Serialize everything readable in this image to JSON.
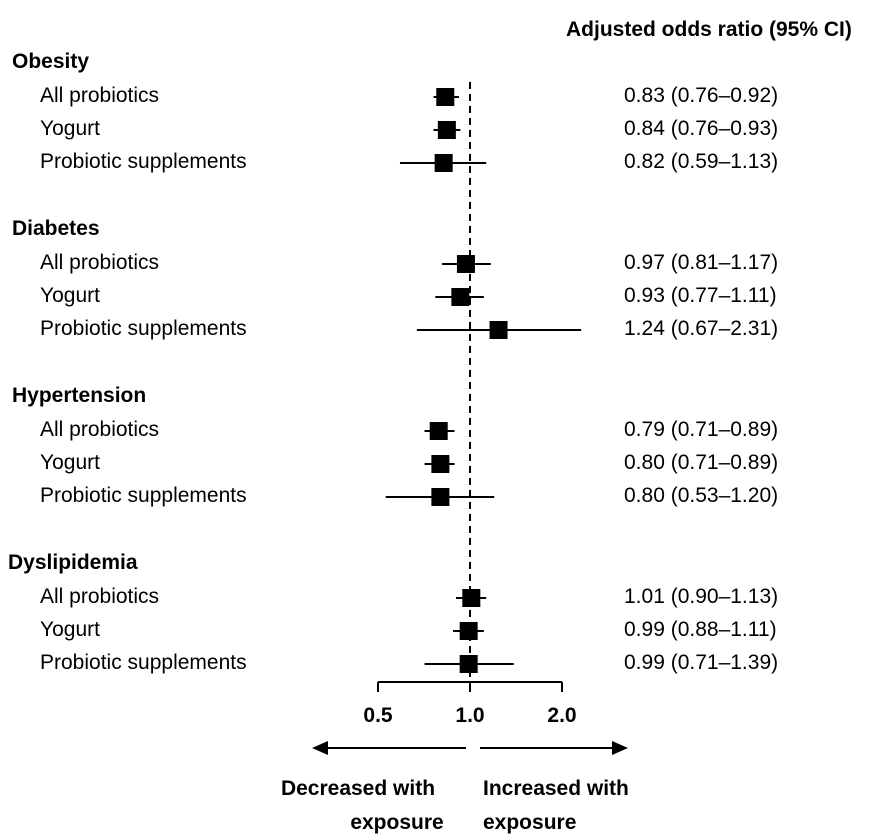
{
  "header": "Adjusted odds ratio (95% CI)",
  "chart_data": {
    "type": "forest",
    "xscale": "log",
    "reference_line": 1.0,
    "x_ticks": [
      {
        "value": 0.5,
        "label": "0.5"
      },
      {
        "value": 1.0,
        "label": "1.0"
      },
      {
        "value": 2.0,
        "label": "2.0"
      }
    ],
    "direction_labels": {
      "left_line1": "Decreased with",
      "left_line2": "exposure",
      "right_line1": "Increased with",
      "right_line2": "exposure"
    },
    "groups": [
      {
        "label": "Obesity",
        "rows": [
          {
            "label": "All probiotics",
            "or": 0.83,
            "lo": 0.76,
            "hi": 0.92,
            "text": "0.83 (0.76–0.92)"
          },
          {
            "label": "Yogurt",
            "or": 0.84,
            "lo": 0.76,
            "hi": 0.93,
            "text": "0.84 (0.76–0.93)"
          },
          {
            "label": "Probiotic supplements",
            "or": 0.82,
            "lo": 0.59,
            "hi": 1.13,
            "text": "0.82 (0.59–1.13)"
          }
        ]
      },
      {
        "label": "Diabetes",
        "rows": [
          {
            "label": "All probiotics",
            "or": 0.97,
            "lo": 0.81,
            "hi": 1.17,
            "text": "0.97 (0.81–1.17)"
          },
          {
            "label": "Yogurt",
            "or": 0.93,
            "lo": 0.77,
            "hi": 1.11,
            "text": "0.93 (0.77–1.11)"
          },
          {
            "label": "Probiotic supplements",
            "or": 1.24,
            "lo": 0.67,
            "hi": 2.31,
            "text": "1.24 (0.67–2.31)"
          }
        ]
      },
      {
        "label": "Hypertension",
        "rows": [
          {
            "label": "All probiotics",
            "or": 0.79,
            "lo": 0.71,
            "hi": 0.89,
            "text": "0.79 (0.71–0.89)"
          },
          {
            "label": "Yogurt",
            "or": 0.8,
            "lo": 0.71,
            "hi": 0.89,
            "text": "0.80 (0.71–0.89)"
          },
          {
            "label": "Probiotic supplements",
            "or": 0.8,
            "lo": 0.53,
            "hi": 1.2,
            "text": "0.80 (0.53–1.20)"
          }
        ]
      },
      {
        "label": "Dyslipidemia",
        "rows": [
          {
            "label": "All probiotics",
            "or": 1.01,
            "lo": 0.9,
            "hi": 1.13,
            "text": "1.01 (0.90–1.13)"
          },
          {
            "label": "Yogurt",
            "or": 0.99,
            "lo": 0.88,
            "hi": 1.11,
            "text": "0.99 (0.88–1.11)"
          },
          {
            "label": "Probiotic supplements",
            "or": 0.99,
            "lo": 0.71,
            "hi": 1.39,
            "text": "0.99 (0.71–1.39)"
          }
        ]
      }
    ]
  }
}
